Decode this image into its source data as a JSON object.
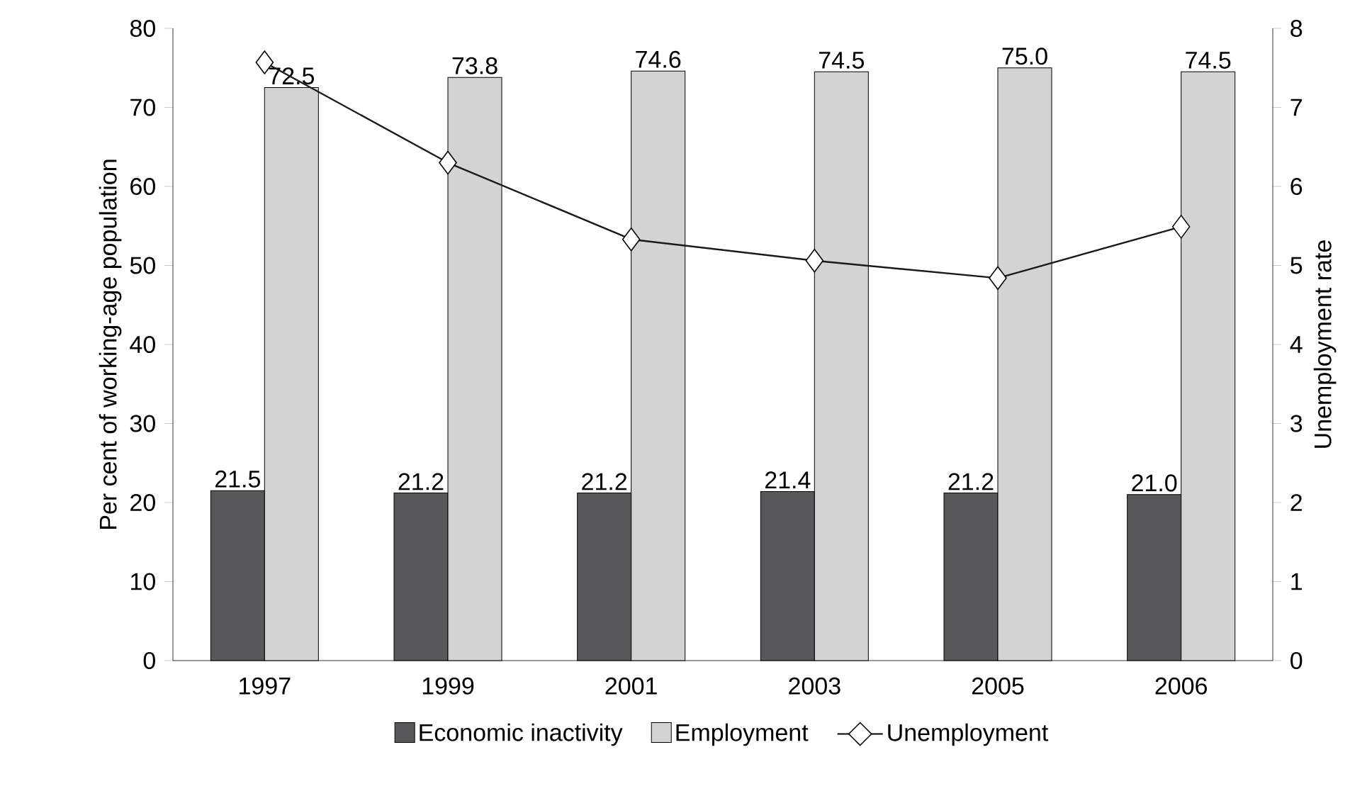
{
  "chart_data": {
    "type": "bar",
    "ylabel": "Per cent of working-age population",
    "y2label": "Unemployment rate",
    "categories": [
      "1997",
      "1999",
      "2001",
      "2003",
      "2005",
      "2006"
    ],
    "series": [
      {
        "name": "Economic inactivity",
        "color": "#58585a",
        "values": [
          21.5,
          21.2,
          21.2,
          21.4,
          21.2,
          21.0
        ],
        "value_labels": [
          "21.5",
          "21.2",
          "21.2",
          "21.4",
          "21.2",
          "21.0"
        ]
      },
      {
        "name": "Employment",
        "color": "#d3d3d3",
        "values": [
          72.5,
          73.8,
          74.6,
          74.5,
          75.0,
          74.5
        ],
        "value_labels": [
          "72.5",
          "73.8",
          "74.6",
          "74.5",
          "75.0",
          "74.5"
        ]
      },
      {
        "name": "Unemployment",
        "type": "line",
        "axis": "y2",
        "color": "#1a1a1a",
        "marker": "diamond",
        "values": [
          7.57,
          6.3,
          5.33,
          5.06,
          4.84,
          5.49
        ]
      }
    ],
    "ylim": [
      0,
      80
    ],
    "yticks": [
      0,
      10,
      20,
      30,
      40,
      50,
      60,
      70,
      80
    ],
    "y2lim": [
      0,
      8
    ],
    "y2ticks": [
      0,
      1,
      2,
      3,
      4,
      5,
      6,
      7,
      8
    ],
    "legend": "bottom",
    "grid": false
  }
}
